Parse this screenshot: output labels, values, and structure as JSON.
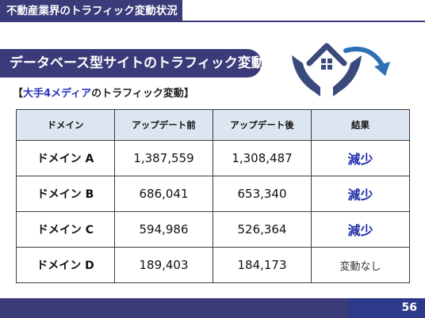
{
  "header": {
    "title": "不動産業界のトラフィック変動状況"
  },
  "banner": {
    "heading": "データベース型サイトのトラフィック変動"
  },
  "subheading": {
    "open": "【",
    "accent": "大手4メディア",
    "rest": "のトラフィック変動】"
  },
  "graphic": {
    "icon": "house-in-hands-icon",
    "arrow": "downward-trend-arrow-icon",
    "color": "#3a4a7c"
  },
  "table": {
    "headers": [
      "ドメイン",
      "アップデート前",
      "アップデート後",
      "結果"
    ],
    "rows": [
      {
        "domain": "ドメイン A",
        "before": "1,387,559",
        "after": "1,308,487",
        "result": "減少",
        "status": "down"
      },
      {
        "domain": "ドメイン B",
        "before": "686,041",
        "after": "653,340",
        "result": "減少",
        "status": "down"
      },
      {
        "domain": "ドメイン C",
        "before": "594,986",
        "after": "526,364",
        "result": "減少",
        "status": "down"
      },
      {
        "domain": "ドメイン D",
        "before": "189,403",
        "after": "184,173",
        "result": "変動なし",
        "status": "flat"
      }
    ]
  },
  "footer": {
    "page_number": "56"
  },
  "colors": {
    "navy": "#3a3b78",
    "header_fill": "#dce6f1",
    "decrease_text": "#1f2fa8"
  }
}
